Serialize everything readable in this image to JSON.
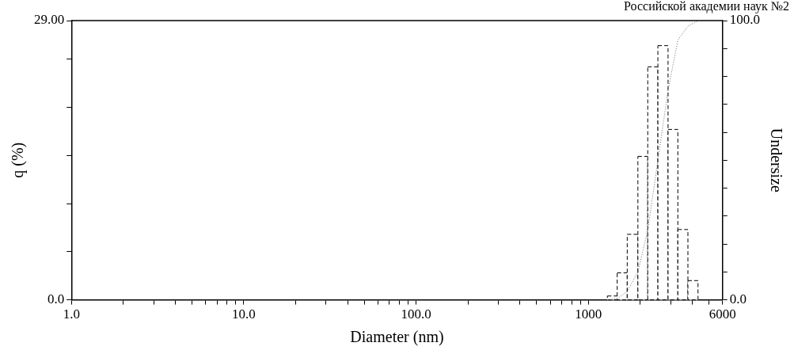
{
  "chart_data": {
    "type": "histogram",
    "xlabel": "Diameter (nm)",
    "ylabel": "q (%)",
    "y2label": "Undersize",
    "annotations": [
      "Российской академии наук №2"
    ],
    "log": "x",
    "grid": false,
    "legend": false,
    "xlim": [
      1,
      6000
    ],
    "xticks": [
      {
        "value": 1,
        "label": "1.0"
      },
      {
        "value": 2,
        "label": null
      },
      {
        "value": 3,
        "label": null
      },
      {
        "value": 4,
        "label": null
      },
      {
        "value": 5,
        "label": null
      },
      {
        "value": 6,
        "label": null
      },
      {
        "value": 7,
        "label": null
      },
      {
        "value": 8,
        "label": null
      },
      {
        "value": 9,
        "label": null
      },
      {
        "value": 10,
        "label": "10.0"
      },
      {
        "value": 20,
        "label": null
      },
      {
        "value": 30,
        "label": null
      },
      {
        "value": 40,
        "label": null
      },
      {
        "value": 50,
        "label": null
      },
      {
        "value": 60,
        "label": null
      },
      {
        "value": 70,
        "label": null
      },
      {
        "value": 80,
        "label": null
      },
      {
        "value": 90,
        "label": null
      },
      {
        "value": 100,
        "label": "100.0"
      },
      {
        "value": 200,
        "label": null
      },
      {
        "value": 300,
        "label": null
      },
      {
        "value": 400,
        "label": null
      },
      {
        "value": 500,
        "label": null
      },
      {
        "value": 600,
        "label": null
      },
      {
        "value": 700,
        "label": null
      },
      {
        "value": 800,
        "label": null
      },
      {
        "value": 900,
        "label": null
      },
      {
        "value": 1000,
        "label": "1000"
      },
      {
        "value": 2000,
        "label": null
      },
      {
        "value": 3000,
        "label": null
      },
      {
        "value": 4000,
        "label": null
      },
      {
        "value": 5000,
        "label": null
      },
      {
        "value": 6000,
        "label": "6000"
      }
    ],
    "ylim": [
      0,
      29
    ],
    "yticks": [
      {
        "value": 0,
        "label": "0.0"
      },
      {
        "value": 5,
        "label": null
      },
      {
        "value": 10,
        "label": null
      },
      {
        "value": 15,
        "label": null
      },
      {
        "value": 20,
        "label": null
      },
      {
        "value": 25,
        "label": null
      },
      {
        "value": 29,
        "label": "29.00"
      }
    ],
    "y2lim": [
      0,
      100
    ],
    "y2ticks": [
      {
        "value": 0,
        "label": "0.0"
      },
      {
        "value": 10,
        "label": null
      },
      {
        "value": 20,
        "label": null
      },
      {
        "value": 30,
        "label": null
      },
      {
        "value": 40,
        "label": null
      },
      {
        "value": 50,
        "label": null
      },
      {
        "value": 60,
        "label": null
      },
      {
        "value": 70,
        "label": null
      },
      {
        "value": 80,
        "label": null
      },
      {
        "value": 90,
        "label": null
      },
      {
        "value": 100,
        "label": "100.0"
      }
    ],
    "series": [
      {
        "type": "histogram",
        "color": "#000000",
        "bins": [
          1288,
          1468,
          1679,
          1936,
          2208,
          2529,
          2897,
          3301,
          3777,
          4323
        ],
        "values": [
          0.4,
          2.8,
          6.8,
          14.9,
          24.2,
          26.4,
          17.7,
          7.3,
          2.0
        ],
        "line_style": "dashed"
      },
      {
        "type": "line",
        "axis": "y2",
        "color": "#666666",
        "line_style": "dotted",
        "marker": "none",
        "x": [
          1288,
          1468,
          1679,
          1936,
          2208,
          2529,
          2897,
          3301,
          3777,
          4323
        ],
        "values": [
          0,
          0.4,
          3,
          10,
          25,
          50,
          75,
          93,
          98,
          100
        ]
      }
    ]
  }
}
